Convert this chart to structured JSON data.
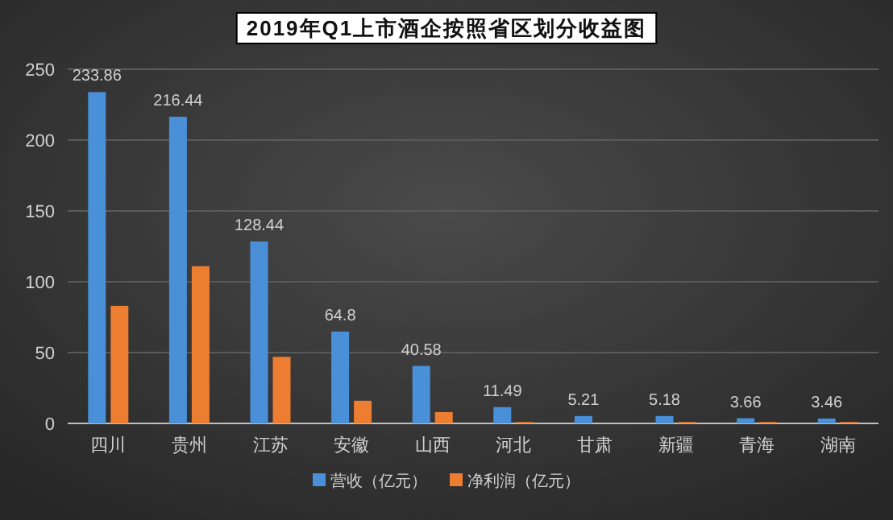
{
  "chart_data": {
    "type": "bar",
    "title": "2019年Q1上市酒企按照省区划分收益图",
    "categories": [
      "四川",
      "贵州",
      "江苏",
      "安徽",
      "山西",
      "河北",
      "甘肃",
      "新疆",
      "青海",
      "湖南"
    ],
    "series": [
      {
        "name": "营收（亿元）",
        "color": "#4a90d9",
        "values": [
          233.86,
          216.44,
          128.44,
          64.8,
          40.58,
          11.49,
          5.21,
          5.18,
          3.66,
          3.46
        ],
        "value_labels": [
          "233.86",
          "216.44",
          "128.44",
          "64.8",
          "40.58",
          "11.49",
          "5.21",
          "5.18",
          "3.66",
          "3.46"
        ]
      },
      {
        "name": "净利润（亿元）",
        "color": "#ed7d31",
        "values": [
          83,
          111,
          47,
          16,
          8,
          1,
          0,
          1,
          1,
          1
        ]
      }
    ],
    "ylim": [
      0,
      250
    ],
    "yticks": [
      0,
      50,
      100,
      150,
      200,
      250
    ],
    "grid": "y",
    "legend": "bottom"
  }
}
